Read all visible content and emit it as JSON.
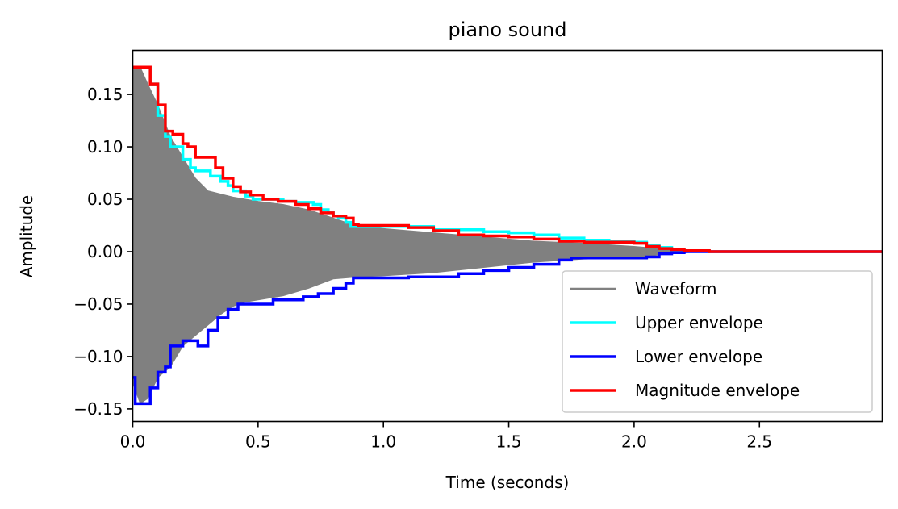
{
  "chart_data": {
    "type": "line",
    "title": "piano sound",
    "xlabel": "Time (seconds)",
    "ylabel": "Amplitude",
    "xlim": [
      0,
      2.99
    ],
    "ylim": [
      -0.162,
      0.192
    ],
    "x_ticks": [
      0.0,
      0.5,
      1.0,
      1.5,
      2.0,
      2.5
    ],
    "x_tick_labels": [
      "0.0",
      "0.5",
      "1.0",
      "1.5",
      "2.0",
      "2.5"
    ],
    "y_ticks": [
      -0.15,
      -0.1,
      -0.05,
      0.0,
      0.05,
      0.1,
      0.15
    ],
    "y_tick_labels": [
      "−0.15",
      "−0.10",
      "−0.05",
      "0.00",
      "0.05",
      "0.10",
      "0.15"
    ],
    "grid": false,
    "legend_position": "lower-right",
    "series": [
      {
        "name": "Waveform",
        "color": "#808080",
        "x": [
          0.0,
          0.03,
          0.06,
          0.1,
          0.15,
          0.2,
          0.25,
          0.3,
          0.35,
          0.4,
          0.45,
          0.5,
          0.6,
          0.7,
          0.8,
          0.9,
          1.0,
          1.2,
          1.4,
          1.6,
          1.8,
          2.0,
          2.1,
          2.2,
          2.3,
          2.5,
          2.99
        ],
        "upper": [
          0.176,
          0.176,
          0.16,
          0.14,
          0.11,
          0.09,
          0.07,
          0.058,
          0.055,
          0.052,
          0.05,
          0.048,
          0.045,
          0.04,
          0.032,
          0.024,
          0.022,
          0.018,
          0.014,
          0.01,
          0.008,
          0.005,
          0.003,
          0.001,
          0.0,
          0.0,
          0.0
        ],
        "lower": [
          -0.125,
          -0.145,
          -0.14,
          -0.12,
          -0.11,
          -0.09,
          -0.08,
          -0.07,
          -0.06,
          -0.052,
          -0.048,
          -0.046,
          -0.042,
          -0.035,
          -0.026,
          -0.024,
          -0.023,
          -0.02,
          -0.015,
          -0.01,
          -0.007,
          -0.006,
          -0.003,
          -0.001,
          0.0,
          0.0,
          0.0
        ]
      },
      {
        "name": "Upper envelope",
        "color": "#00ffff",
        "x": [
          0.0,
          0.04,
          0.07,
          0.1,
          0.13,
          0.15,
          0.2,
          0.23,
          0.25,
          0.28,
          0.31,
          0.35,
          0.38,
          0.4,
          0.45,
          0.48,
          0.52,
          0.6,
          0.65,
          0.72,
          0.75,
          0.78,
          0.8,
          0.82,
          0.85,
          0.87,
          0.9,
          1.0,
          1.2,
          1.4,
          1.5,
          1.6,
          1.7,
          1.8,
          1.9,
          2.0,
          2.05,
          2.1,
          2.15,
          2.2,
          2.3,
          2.5,
          2.99
        ],
        "y": [
          0.176,
          0.176,
          0.16,
          0.13,
          0.11,
          0.1,
          0.088,
          0.08,
          0.077,
          0.077,
          0.072,
          0.067,
          0.063,
          0.058,
          0.053,
          0.05,
          0.05,
          0.048,
          0.047,
          0.045,
          0.04,
          0.037,
          0.034,
          0.032,
          0.028,
          0.024,
          0.024,
          0.024,
          0.021,
          0.019,
          0.018,
          0.016,
          0.013,
          0.011,
          0.01,
          0.009,
          0.006,
          0.004,
          0.002,
          0.001,
          0.0,
          0.0,
          0.0
        ]
      },
      {
        "name": "Lower envelope",
        "color": "#0000ff",
        "x": [
          0.0,
          0.01,
          0.02,
          0.06,
          0.07,
          0.1,
          0.13,
          0.15,
          0.2,
          0.23,
          0.26,
          0.3,
          0.34,
          0.38,
          0.42,
          0.48,
          0.52,
          0.56,
          0.62,
          0.68,
          0.74,
          0.8,
          0.85,
          0.88,
          0.9,
          1.0,
          1.1,
          1.2,
          1.3,
          1.4,
          1.5,
          1.6,
          1.7,
          1.75,
          1.8,
          1.9,
          2.0,
          2.05,
          2.1,
          2.15,
          2.2,
          2.3,
          2.5,
          2.99
        ],
        "y": [
          -0.12,
          -0.145,
          -0.145,
          -0.145,
          -0.13,
          -0.115,
          -0.11,
          -0.09,
          -0.085,
          -0.085,
          -0.09,
          -0.075,
          -0.063,
          -0.055,
          -0.05,
          -0.05,
          -0.05,
          -0.046,
          -0.046,
          -0.043,
          -0.04,
          -0.035,
          -0.03,
          -0.025,
          -0.025,
          -0.025,
          -0.024,
          -0.024,
          -0.021,
          -0.018,
          -0.015,
          -0.012,
          -0.008,
          -0.006,
          -0.006,
          -0.006,
          -0.006,
          -0.005,
          -0.002,
          -0.001,
          0.0,
          0.0,
          0.0,
          0.0
        ]
      },
      {
        "name": "Magnitude envelope",
        "color": "#ff0000",
        "x": [
          0.0,
          0.04,
          0.07,
          0.1,
          0.13,
          0.16,
          0.2,
          0.22,
          0.25,
          0.3,
          0.33,
          0.36,
          0.4,
          0.43,
          0.47,
          0.52,
          0.58,
          0.65,
          0.7,
          0.75,
          0.8,
          0.85,
          0.88,
          0.9,
          1.0,
          1.1,
          1.2,
          1.3,
          1.4,
          1.5,
          1.6,
          1.7,
          1.8,
          1.9,
          2.0,
          2.05,
          2.1,
          2.15,
          2.2,
          2.3,
          2.5,
          2.99
        ],
        "y": [
          0.176,
          0.176,
          0.16,
          0.14,
          0.115,
          0.112,
          0.103,
          0.1,
          0.09,
          0.09,
          0.08,
          0.07,
          0.062,
          0.057,
          0.054,
          0.05,
          0.048,
          0.045,
          0.041,
          0.037,
          0.034,
          0.032,
          0.026,
          0.025,
          0.025,
          0.023,
          0.02,
          0.016,
          0.015,
          0.014,
          0.012,
          0.01,
          0.009,
          0.009,
          0.008,
          0.005,
          0.003,
          0.002,
          0.001,
          0.0,
          0.0,
          0.0
        ]
      }
    ]
  }
}
